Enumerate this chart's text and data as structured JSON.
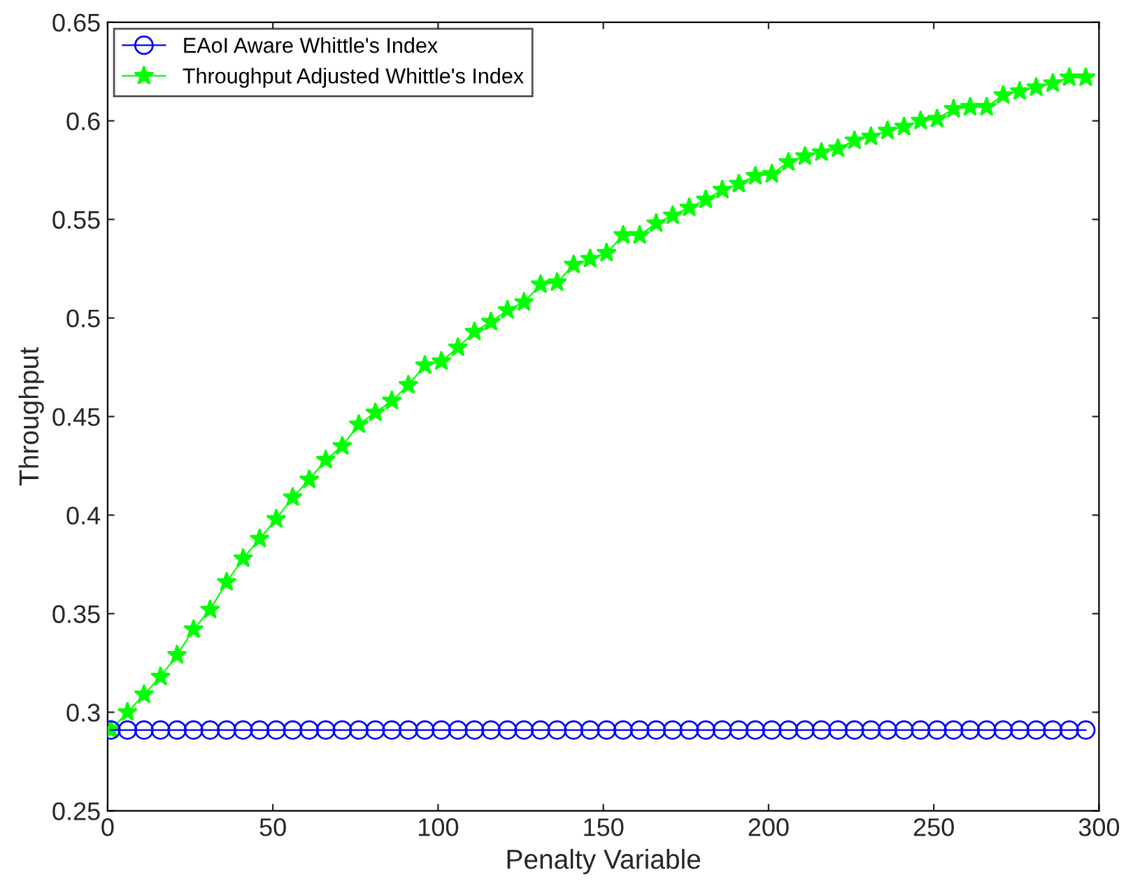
{
  "chart_data": {
    "type": "line",
    "xlabel": "Penalty Variable",
    "ylabel": "Throughput",
    "x": [
      1,
      6,
      11,
      16,
      21,
      26,
      31,
      36,
      41,
      46,
      51,
      56,
      61,
      66,
      71,
      76,
      81,
      86,
      91,
      96,
      101,
      106,
      111,
      116,
      121,
      126,
      131,
      136,
      141,
      146,
      151,
      156,
      161,
      166,
      171,
      176,
      181,
      186,
      191,
      196,
      201,
      206,
      211,
      216,
      221,
      226,
      231,
      236,
      241,
      246,
      251,
      256,
      261,
      266,
      271,
      276,
      281,
      286,
      291,
      296
    ],
    "series": [
      {
        "name": "EAoI Aware Whittle's Index",
        "color": "#0000ff",
        "marker": "circle",
        "values": [
          0.291,
          0.291,
          0.291,
          0.291,
          0.291,
          0.291,
          0.291,
          0.291,
          0.291,
          0.291,
          0.291,
          0.291,
          0.291,
          0.291,
          0.291,
          0.291,
          0.291,
          0.291,
          0.291,
          0.291,
          0.291,
          0.291,
          0.291,
          0.291,
          0.291,
          0.291,
          0.291,
          0.291,
          0.291,
          0.291,
          0.291,
          0.291,
          0.291,
          0.291,
          0.291,
          0.291,
          0.291,
          0.291,
          0.291,
          0.291,
          0.291,
          0.291,
          0.291,
          0.291,
          0.291,
          0.291,
          0.291,
          0.291,
          0.291,
          0.291,
          0.291,
          0.291,
          0.291,
          0.291,
          0.291,
          0.291,
          0.291,
          0.291,
          0.291,
          0.291
        ]
      },
      {
        "name": "Throughput Adjusted Whittle's Index",
        "color": "#00ff00",
        "marker": "star",
        "values": [
          0.291,
          0.3,
          0.309,
          0.318,
          0.329,
          0.342,
          0.352,
          0.366,
          0.378,
          0.388,
          0.398,
          0.409,
          0.418,
          0.428,
          0.435,
          0.446,
          0.452,
          0.458,
          0.466,
          0.476,
          0.478,
          0.485,
          0.493,
          0.498,
          0.504,
          0.508,
          0.517,
          0.518,
          0.527,
          0.53,
          0.533,
          0.542,
          0.542,
          0.548,
          0.552,
          0.556,
          0.56,
          0.565,
          0.568,
          0.572,
          0.573,
          0.579,
          0.582,
          0.584,
          0.586,
          0.59,
          0.592,
          0.595,
          0.597,
          0.6,
          0.601,
          0.606,
          0.607,
          0.607,
          0.613,
          0.615,
          0.617,
          0.619,
          0.622,
          0.622
        ]
      }
    ],
    "xlim": [
      0,
      300
    ],
    "xticks": [
      0,
      50,
      100,
      150,
      200,
      250,
      300
    ],
    "ylim": [
      0.25,
      0.65
    ],
    "yticks": [
      0.25,
      0.3,
      0.35,
      0.4,
      0.45,
      0.5,
      0.55,
      0.6,
      0.65
    ],
    "grid": false,
    "legend": "top left",
    "line_style": "solid"
  }
}
